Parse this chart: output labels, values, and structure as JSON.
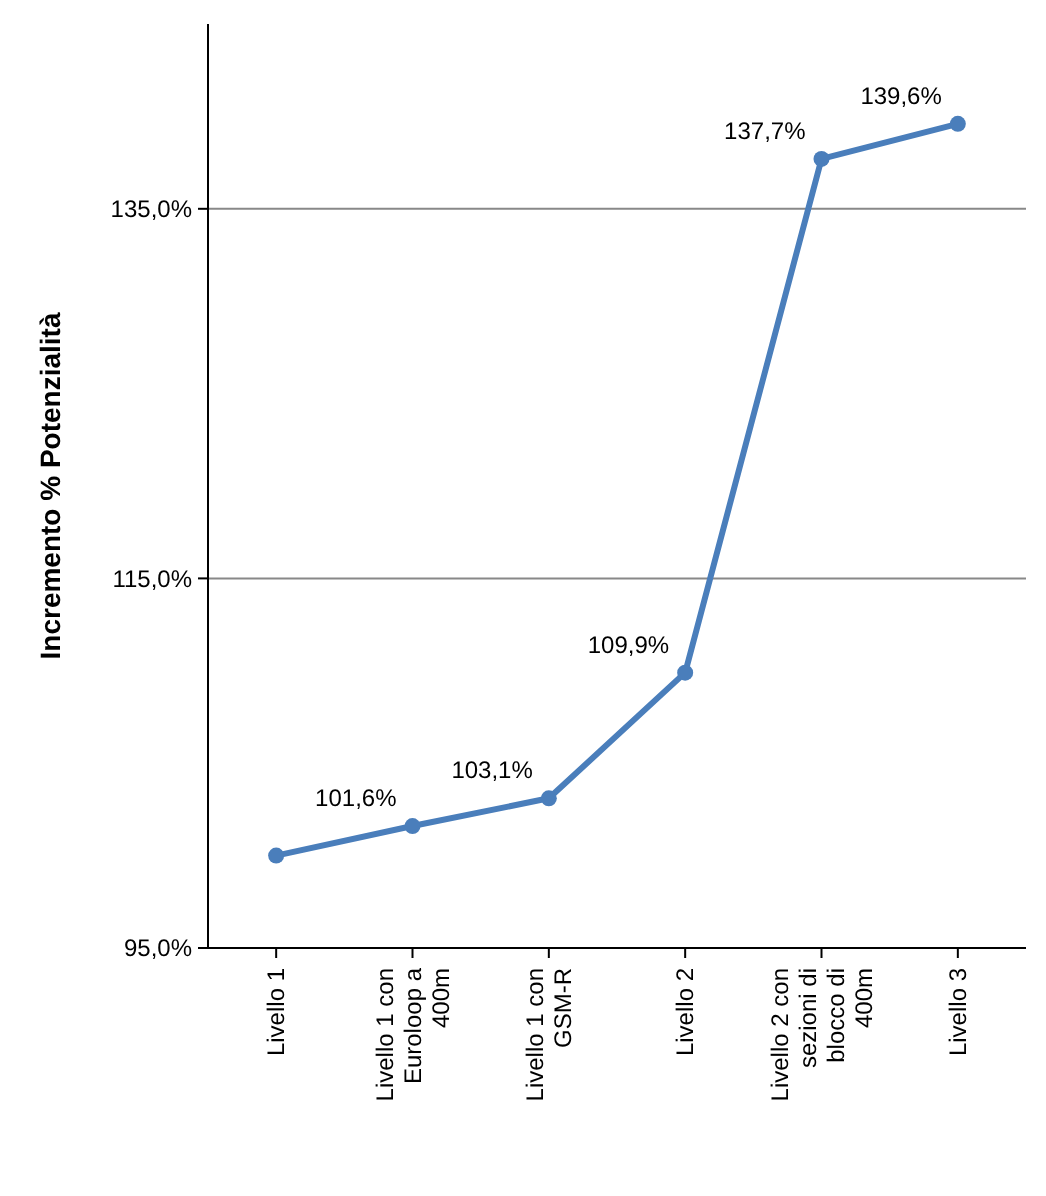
{
  "chart_data": {
    "type": "line",
    "ylabel": "Incremento % Potenzialità",
    "categories": [
      "Livello 1",
      "Livello 1 con Euroloop a 400m",
      "Livello 1 con GSM-R",
      "Livello 2",
      "Livello 2 con sezioni di blocco di 400m",
      "Livello 3"
    ],
    "series": [
      {
        "color": "#4a7ebb",
        "values": [
          100.0,
          101.6,
          103.1,
          109.9,
          137.7,
          139.6
        ],
        "value_labels": [
          null,
          "101,6%",
          "103,1%",
          "109,9%",
          "137,7%",
          "139,6%"
        ]
      }
    ],
    "ylim": [
      95,
      145
    ],
    "yticks": [
      {
        "value": 95,
        "label": "95,0%"
      },
      {
        "value": 115,
        "label": "115,0%"
      },
      {
        "value": 135,
        "label": "135,0%"
      }
    ],
    "grid": "y",
    "marker": "circle",
    "line_style": "solid"
  }
}
